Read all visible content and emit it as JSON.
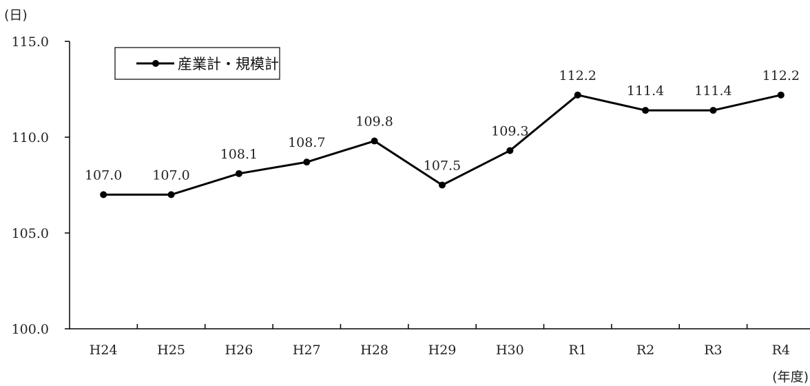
{
  "chart_data": {
    "type": "line",
    "y_unit_label": "(日)",
    "x_unit_label": "(年度)",
    "categories": [
      "H24",
      "H25",
      "H26",
      "H27",
      "H28",
      "H29",
      "H30",
      "R1",
      "R2",
      "R3",
      "R4"
    ],
    "series": [
      {
        "name": "産業計・規模計",
        "values": [
          107.0,
          107.0,
          108.1,
          108.7,
          109.8,
          107.5,
          109.3,
          112.2,
          111.4,
          111.4,
          112.2
        ]
      }
    ],
    "data_labels": [
      "107.0",
      "107.0",
      "108.1",
      "108.7",
      "109.8",
      "107.5",
      "109.3",
      "112.2",
      "111.4",
      "111.4",
      "112.2"
    ],
    "ylim": [
      100.0,
      115.0
    ],
    "y_ticks": [
      100.0,
      105.0,
      110.0,
      115.0
    ],
    "y_tick_labels": [
      "100.0",
      "105.0",
      "110.0",
      "115.0"
    ],
    "grid": false,
    "legend": "top-left",
    "colors": {
      "line": "#000000",
      "axis": "#000000"
    }
  }
}
